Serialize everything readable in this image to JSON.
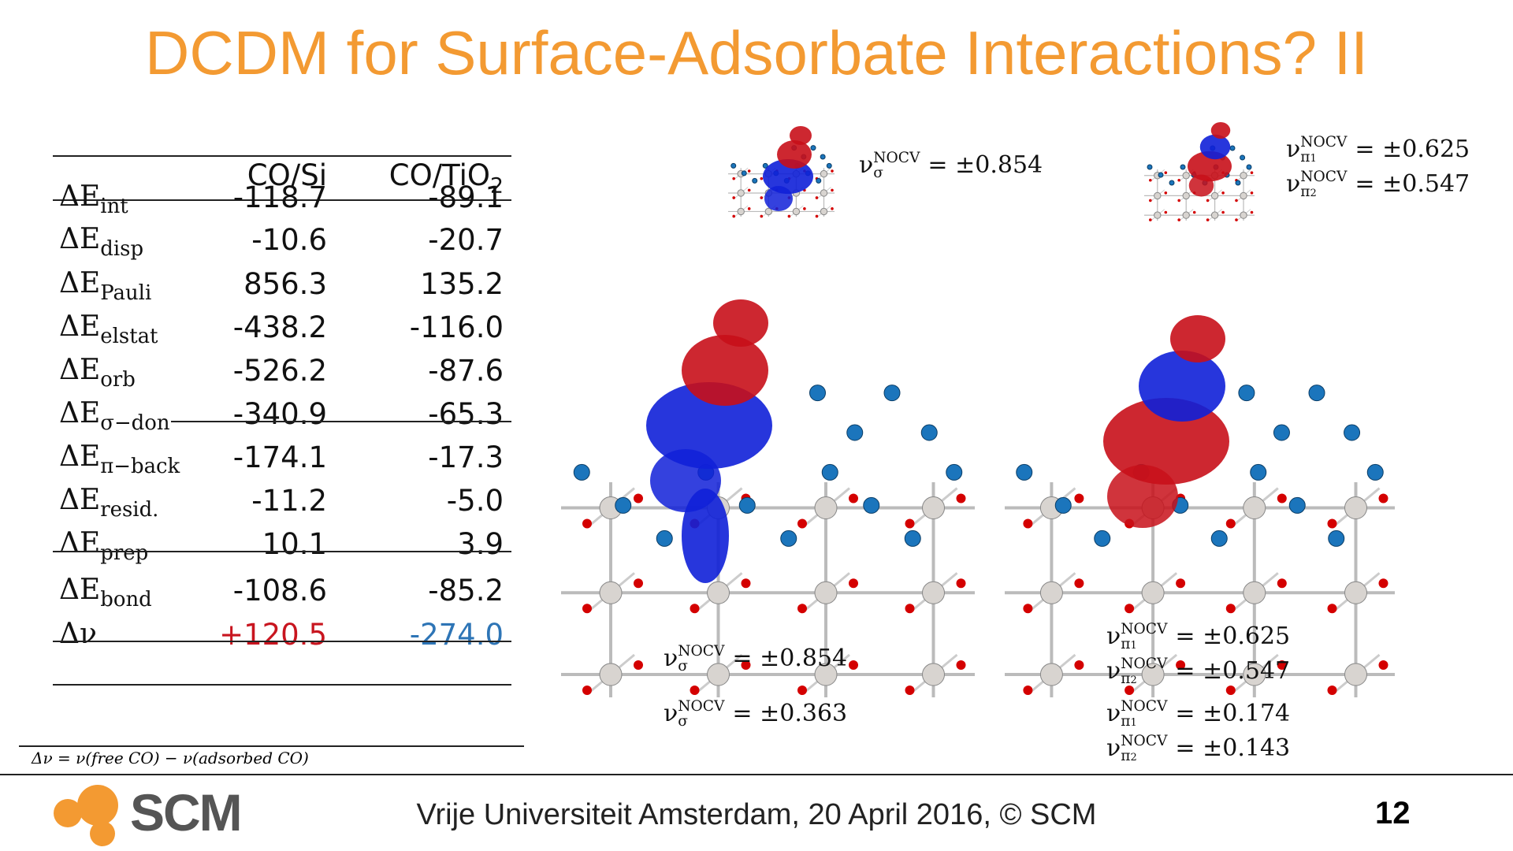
{
  "title": "DCDM for Surface-Adsorbate Interactions? II",
  "table": {
    "header": [
      {
        "text": "CO/Si"
      },
      {
        "text": "CO/TiO",
        "sub": "2"
      }
    ],
    "rows": [
      {
        "label": {
          "symbol": "ΔE",
          "sub": "int"
        },
        "values": [
          "-118.7",
          "-89.1"
        ]
      },
      {
        "label": {
          "symbol": "ΔE",
          "sub": "disp"
        },
        "values": [
          "-10.6",
          "-20.7"
        ]
      },
      {
        "label": {
          "symbol": "ΔE",
          "sub": "Pauli"
        },
        "values": [
          "856.3",
          "135.2"
        ]
      },
      {
        "label": {
          "symbol": "ΔE",
          "sub": "elstat"
        },
        "values": [
          "-438.2",
          "-116.0"
        ]
      },
      {
        "label": {
          "symbol": "ΔE",
          "sub": "orb"
        },
        "values": [
          "-526.2",
          "-87.6"
        ]
      },
      {
        "label": {
          "symbol": "ΔE",
          "sub": "σ−don"
        },
        "values": [
          "-340.9",
          "-65.3"
        ]
      },
      {
        "label": {
          "symbol": "ΔE",
          "sub": "π−back"
        },
        "values": [
          "-174.1",
          "-17.3"
        ]
      },
      {
        "label": {
          "symbol": "ΔE",
          "sub": "resid."
        },
        "values": [
          "-11.2",
          "-5.0"
        ]
      },
      {
        "label": {
          "symbol": "ΔE",
          "sub": "prep"
        },
        "values": [
          "10.1",
          "3.9"
        ]
      },
      {
        "label": {
          "symbol": "ΔE",
          "sub": "bond"
        },
        "values": [
          "-108.6",
          "-85.2"
        ]
      },
      {
        "label": {
          "symbol": "Δν"
        },
        "values": [
          "+120.5",
          "-274.0"
        ]
      }
    ]
  },
  "footnote": "Δν = ν(free CO) − ν(adsorbed CO)",
  "nocv_labels": [
    {
      "symbol": "ν",
      "sup": "NOCV",
      "sub": "σ",
      "value": "= ±0.854"
    },
    {
      "symbol": "ν",
      "sup": "NOCV",
      "sub": "π",
      "sub_index": "1",
      "value": "= ±0.625"
    },
    {
      "symbol": "ν",
      "sup": "NOCV",
      "sub": "π",
      "sub_index": "2",
      "value": "= ±0.547"
    },
    {
      "symbol": "ν",
      "sup": "NOCV",
      "sub": "σ",
      "value": "= ±0.854"
    },
    {
      "symbol": "ν",
      "sup": "NOCV",
      "sub": "σ",
      "value": "= ±0.363"
    },
    {
      "symbol": "ν",
      "sup": "NOCV",
      "sub": "π",
      "sub_index": "1",
      "value": "= ±0.625"
    },
    {
      "symbol": "ν",
      "sup": "NOCV",
      "sub": "π",
      "sub_index": "2",
      "value": "= ±0.547"
    },
    {
      "symbol": "ν",
      "sup": "NOCV",
      "sub": "π",
      "sub_index": "1",
      "value": "= ±0.174"
    },
    {
      "symbol": "ν",
      "sup": "NOCV",
      "sub": "π",
      "sub_index": "2",
      "value": "= ±0.143"
    }
  ],
  "footer": {
    "logo": "SCM",
    "text": "Vrije Universiteit Amsterdam, 20 April 2016, © SCM",
    "page": "12"
  }
}
